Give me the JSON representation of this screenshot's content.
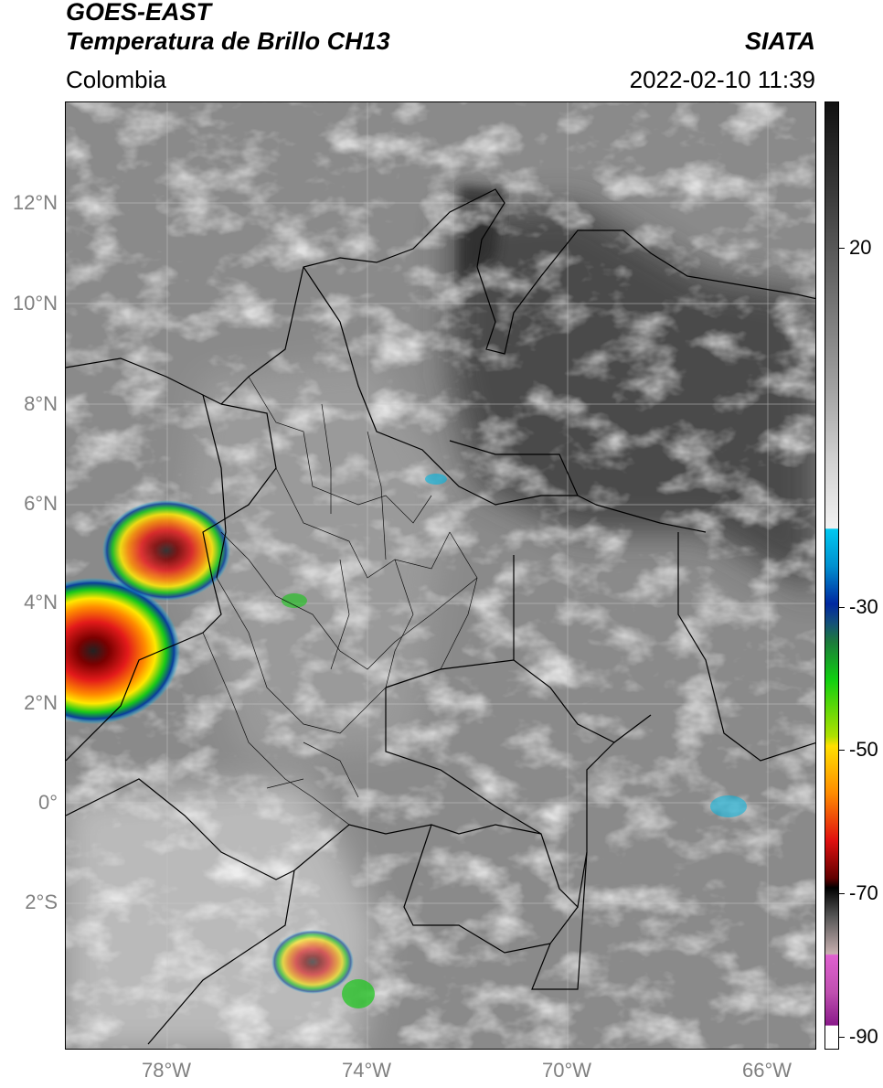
{
  "header": {
    "satellite": "GOES-EAST",
    "product": "Temperatura de Brillo CH13",
    "agency": "SIATA",
    "region": "Colombia",
    "datetime": "2022-02-10 11:39"
  },
  "map": {
    "lat_labels": [
      "12°N",
      "10°N",
      "8°N",
      "6°N",
      "4°N",
      "2°N",
      "0°",
      "2°S"
    ],
    "lon_labels": [
      "78°W",
      "74°W",
      "70°W",
      "66°W"
    ],
    "gridlines": true,
    "extent": {
      "lon_min": -80,
      "lon_max": -65,
      "lat_min": -5,
      "lat_max": 14
    }
  },
  "colorbar": {
    "tick_labels": [
      "20",
      "-30",
      "-50",
      "-70",
      "-90"
    ],
    "units": "",
    "colors": {
      "warm_gray_top": "#111111",
      "light_gray": "#f2f2f2",
      "cyan": "#00c8f0",
      "blue": "#0028a0",
      "green": "#10d010",
      "yellow": "#ffe000",
      "orange": "#ff8c00",
      "red": "#e01010",
      "dark_red": "#600000",
      "black": "#000000",
      "magenta": "#e060d0",
      "purple": "#8a1a8a"
    }
  }
}
